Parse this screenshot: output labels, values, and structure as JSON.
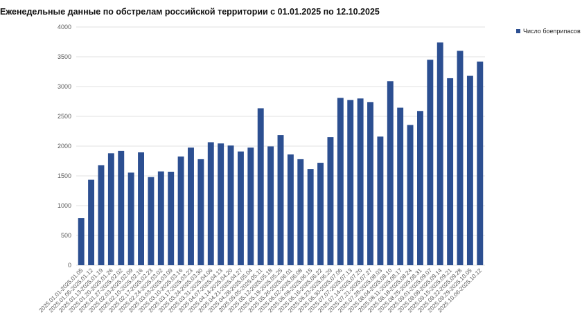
{
  "colors": {
    "bar": "#2c4f91",
    "grid": "#d9d9d9",
    "axis_text": "#595959"
  },
  "chart_data": {
    "type": "bar",
    "title": "Еженедельные данные по обстрелам российской территории с 01.01.2025 по 12.10.2025",
    "xlabel": "",
    "ylabel": "",
    "ylim": [
      0,
      4000
    ],
    "yticks": [
      0,
      500,
      1000,
      1500,
      2000,
      2500,
      3000,
      3500,
      4000
    ],
    "grid": true,
    "legend_position": "top-right",
    "categories": [
      "2025.01.01-2025.01.05",
      "2025.01.06-2025.01.12",
      "2025.01.13-2025.01.19",
      "2025.01.20-2025.01.26",
      "2025.01.27-2025.02.02",
      "2025.02.03-2025.02.09",
      "2025.02.10-2025.02.16",
      "2025.02.17-2025.02.23",
      "2025.02.24-2025.03.02",
      "2025.03.03-2025.03.09",
      "2025.03.10-2025.03.16",
      "2025.03.17-2025.03.23",
      "2025.03.24-2025.03.30",
      "2025.03.31-2025.04.06",
      "2025.04.07-2025.04.13",
      "2025.04.14-2025.04.20",
      "2025.04.21-2025.04.27",
      "2025.04.28-2025.05.04",
      "2025.05.05-2025.05.11",
      "2025.05.12-2025.05.18",
      "2025.05.19-2025.05.25",
      "2025.05.26-2025.06.01",
      "2025.06.02-2025.06.08",
      "2025.06.09-2025.06.15",
      "2025.06.16-2025.06.22",
      "2025.06.23-2025.06.29",
      "2025.06.30-2025.07.06",
      "2025.07.07-2025.07.13",
      "2025.07.14-2025.07.20",
      "2025.07.21-2025.07.27",
      "2025.07.28-2025.08.03",
      "2025.08.04-2025.08.10",
      "2025.08.11-2025.08.17",
      "2025.08.18-2025.08.24",
      "2025.08.25-2025.08.31",
      "2025.09.01-2025.09.07",
      "2025.09.08-2025.09.14",
      "2025.09.15-2025.09.21",
      "2025.09.22-2025.09.28",
      "2025.09.29-2025.10.05",
      "2025.10.06-2025.10.12"
    ],
    "series": [
      {
        "name": "Число боеприпасов",
        "values": [
          790,
          1435,
          1680,
          1880,
          1920,
          1555,
          1895,
          1480,
          1575,
          1570,
          1825,
          1975,
          1780,
          2065,
          2045,
          2010,
          1910,
          1975,
          2635,
          1995,
          2185,
          1860,
          1780,
          1615,
          1720,
          2150,
          2810,
          2775,
          2800,
          2740,
          2160,
          3090,
          2645,
          2355,
          2590,
          3450,
          3740,
          3140,
          3600,
          3180,
          3420
        ]
      }
    ]
  }
}
